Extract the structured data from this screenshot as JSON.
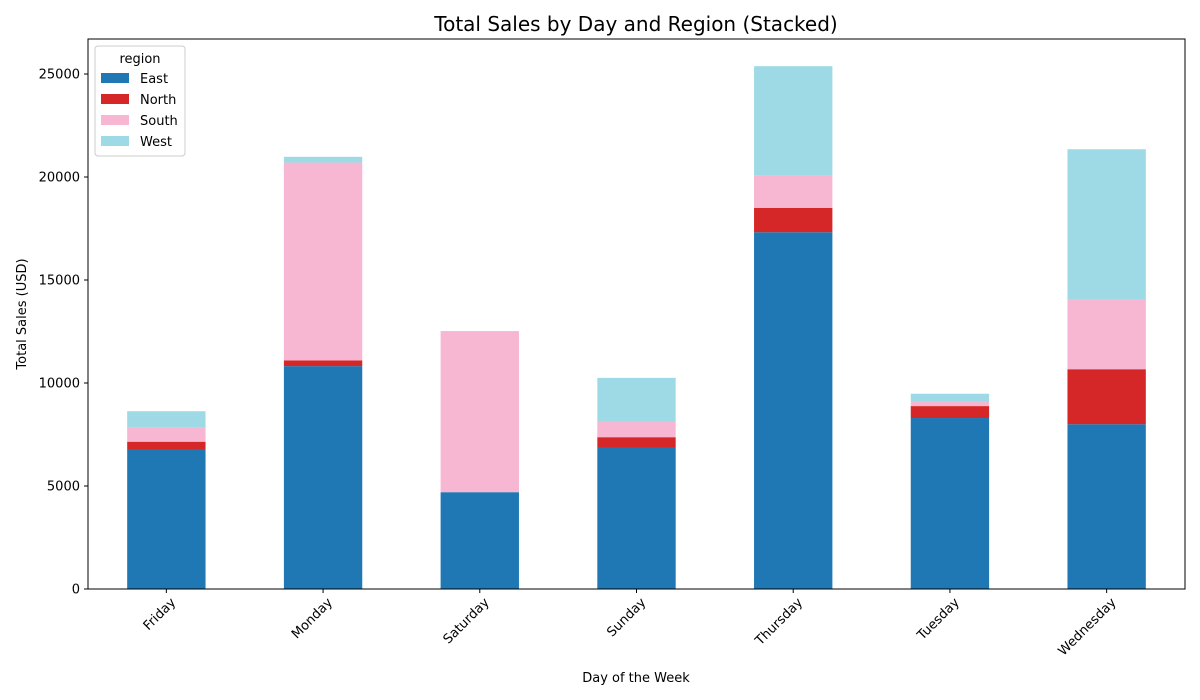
{
  "chart_data": {
    "type": "bar",
    "stacked": true,
    "title": "Total Sales by Day and Region (Stacked)",
    "xlabel": "Day of the Week",
    "ylabel": "Total Sales (USD)",
    "ylim": [
      0,
      26700
    ],
    "yticks": [
      0,
      5000,
      10000,
      15000,
      20000,
      25000
    ],
    "categories": [
      "Friday",
      "Monday",
      "Saturday",
      "Sunday",
      "Thursday",
      "Tuesday",
      "Wednesday"
    ],
    "legend": {
      "title": "region",
      "placement": "top-left"
    },
    "series": [
      {
        "name": "East",
        "color": "#1f77b4",
        "values": [
          6750,
          10820,
          4700,
          6870,
          17320,
          8300,
          8000
        ]
      },
      {
        "name": "North",
        "color": "#d62728",
        "values": [
          400,
          280,
          0,
          500,
          1180,
          580,
          2670
        ]
      },
      {
        "name": "South",
        "color": "#f7b6d2",
        "values": [
          680,
          9600,
          7820,
          760,
          1580,
          220,
          3380
        ]
      },
      {
        "name": "West",
        "color": "#9edae5",
        "values": [
          800,
          280,
          0,
          2120,
          5300,
          380,
          7300
        ]
      }
    ]
  }
}
